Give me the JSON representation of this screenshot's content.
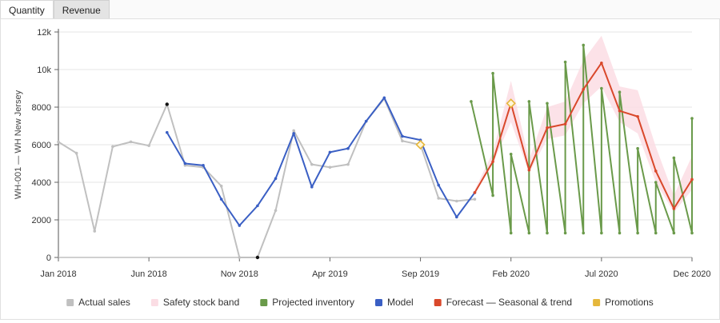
{
  "tabs": [
    {
      "label": "Quantity",
      "active": true
    },
    {
      "label": "Revenue",
      "active": false
    }
  ],
  "chart_data": {
    "type": "line",
    "title": "",
    "ylabel": "WH-001 — WH New Jersey",
    "xlabel": "",
    "ylim": [
      0,
      12000
    ],
    "y_ticks": [
      0,
      2000,
      4000,
      6000,
      8000,
      10000,
      12000
    ],
    "y_tick_labels": [
      "0",
      "2000",
      "4000",
      "6000",
      "8000",
      "10k",
      "12k"
    ],
    "x_range": [
      "2018-01",
      "2020-12"
    ],
    "x_ticks": [
      {
        "date": "2018-01",
        "label": "Jan 2018"
      },
      {
        "date": "2018-06",
        "label": "Jun 2018"
      },
      {
        "date": "2018-11",
        "label": "Nov 2018"
      },
      {
        "date": "2019-04",
        "label": "Apr 2019"
      },
      {
        "date": "2019-09",
        "label": "Sep 2019"
      },
      {
        "date": "2020-02",
        "label": "Feb 2020"
      },
      {
        "date": "2020-07",
        "label": "Jul 2020"
      },
      {
        "date": "2020-12",
        "label": "Dec 2020"
      }
    ],
    "grid": "horizontal",
    "legend_position": "bottom",
    "series": [
      {
        "name": "Safety stock band",
        "kind": "band",
        "color": "#fbdde4",
        "x": [
          "2019-12",
          "2020-01",
          "2020-02",
          "2020-03",
          "2020-04",
          "2020-05",
          "2020-06",
          "2020-07",
          "2020-08",
          "2020-09",
          "2020-10",
          "2020-11",
          "2020-12"
        ],
        "low": [
          3400,
          5000,
          7200,
          4500,
          6300,
          6500,
          8200,
          9100,
          7200,
          6600,
          4000,
          2400,
          3600
        ],
        "high": [
          3600,
          5600,
          9400,
          5200,
          8000,
          8300,
          10500,
          11800,
          9100,
          8900,
          5900,
          3300,
          5400
        ]
      },
      {
        "name": "Actual sales",
        "kind": "line",
        "color": "#c0c0c0",
        "x": [
          "2018-01",
          "2018-02",
          "2018-03",
          "2018-04",
          "2018-05",
          "2018-06",
          "2018-07",
          "2018-08",
          "2018-09",
          "2018-10",
          "2018-11",
          "2018-12",
          "2019-01",
          "2019-02",
          "2019-03",
          "2019-04",
          "2019-05",
          "2019-06",
          "2019-07",
          "2019-08",
          "2019-09",
          "2019-10",
          "2019-11",
          "2019-12"
        ],
        "y": [
          6150,
          5550,
          1400,
          5900,
          6150,
          5950,
          8150,
          4900,
          4800,
          3800,
          0,
          0,
          2500,
          6750,
          4950,
          4800,
          4950,
          7250,
          8450,
          6200,
          6000,
          3150,
          3000,
          3100
        ]
      },
      {
        "name": "Model",
        "kind": "line",
        "color": "#3a5fc4",
        "x": [
          "2018-07",
          "2018-08",
          "2018-09",
          "2018-10",
          "2018-11",
          "2018-12",
          "2019-01",
          "2019-02",
          "2019-03",
          "2019-04",
          "2019-05",
          "2019-06",
          "2019-07",
          "2019-08",
          "2019-09",
          "2019-10",
          "2019-11",
          "2019-12"
        ],
        "y": [
          6650,
          5000,
          4900,
          3100,
          1700,
          2750,
          4200,
          6600,
          3750,
          5600,
          5800,
          7250,
          8500,
          6450,
          6250,
          3850,
          2150,
          3450
        ]
      },
      {
        "name": "Forecast — Seasonal & trend",
        "kind": "line",
        "color": "#d9482b",
        "x": [
          "2019-12",
          "2020-01",
          "2020-02",
          "2020-03",
          "2020-04",
          "2020-05",
          "2020-06",
          "2020-07",
          "2020-08",
          "2020-09",
          "2020-10",
          "2020-11",
          "2020-12"
        ],
        "y": [
          3450,
          5100,
          8200,
          4650,
          6900,
          7100,
          8950,
          10350,
          7800,
          7500,
          4600,
          2600,
          4150
        ]
      },
      {
        "name": "Projected inventory",
        "kind": "line",
        "color": "#6a9a4a",
        "x": [
          "2019-11.8",
          "2020-01",
          "2020-01",
          "2020-02",
          "2020-02",
          "2020-03",
          "2020-03",
          "2020-04",
          "2020-04",
          "2020-05",
          "2020-05",
          "2020-06",
          "2020-06",
          "2020-07",
          "2020-07",
          "2020-08",
          "2020-08",
          "2020-09",
          "2020-09",
          "2020-10",
          "2020-10",
          "2020-11",
          "2020-11",
          "2020-12",
          "2020-12"
        ],
        "y": [
          8300,
          3300,
          9800,
          1300,
          5500,
          1300,
          8300,
          1300,
          8200,
          1300,
          10400,
          1300,
          11300,
          1300,
          9000,
          1300,
          8800,
          1300,
          5800,
          1300,
          4000,
          1300,
          5300,
          1300,
          7400
        ]
      },
      {
        "name": "Promotions",
        "kind": "markers",
        "color": "#e5b73b",
        "x": [
          "2019-09",
          "2020-02"
        ],
        "y": [
          6000,
          8200
        ]
      }
    ],
    "highlight_points": [
      {
        "x": "2018-07",
        "y": 8150
      },
      {
        "x": "2018-12",
        "y": 0
      }
    ],
    "legend": [
      "Actual sales",
      "Safety stock band",
      "Projected inventory",
      "Model",
      "Forecast — Seasonal & trend",
      "Promotions"
    ]
  }
}
